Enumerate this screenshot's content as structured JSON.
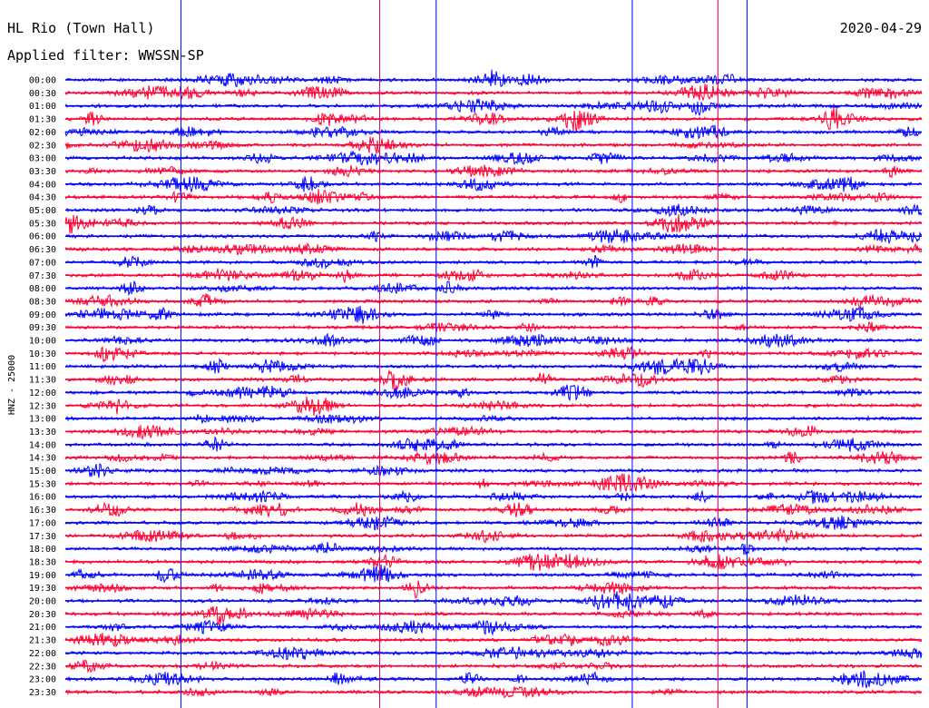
{
  "chart_data": {
    "type": "line",
    "title": "HL Rio (Town Hall)",
    "subtitle": "Applied filter: WWSSN-SP",
    "date": "2020-04-29",
    "ylabel": "HNZ - 25000",
    "rows": [
      "00:00",
      "00:30",
      "01:00",
      "01:30",
      "02:00",
      "02:30",
      "03:00",
      "03:30",
      "04:00",
      "04:30",
      "05:00",
      "05:30",
      "06:00",
      "06:30",
      "07:00",
      "07:30",
      "08:00",
      "08:30",
      "09:00",
      "09:30",
      "10:00",
      "10:30",
      "11:00",
      "11:30",
      "12:00",
      "12:30",
      "13:00",
      "13:30",
      "14:00",
      "14:30",
      "15:00",
      "15:30",
      "16:00",
      "16:30",
      "17:00",
      "17:30",
      "18:00",
      "18:30",
      "19:00",
      "19:30",
      "20:00",
      "20:30",
      "21:00",
      "21:30",
      "22:00",
      "22:30",
      "23:00",
      "23:30"
    ],
    "series_colors": [
      "#0000ff",
      "#ff0033"
    ],
    "vertical_markers": [
      {
        "x_fraction": 0.135,
        "color": "#0000ff"
      },
      {
        "x_fraction": 0.367,
        "color": "#cc0066"
      },
      {
        "x_fraction": 0.433,
        "color": "#0000ff"
      },
      {
        "x_fraction": 0.662,
        "color": "#0000ff"
      },
      {
        "x_fraction": 0.762,
        "color": "#cc0066"
      },
      {
        "x_fraction": 0.796,
        "color": "#0000ff"
      }
    ]
  }
}
